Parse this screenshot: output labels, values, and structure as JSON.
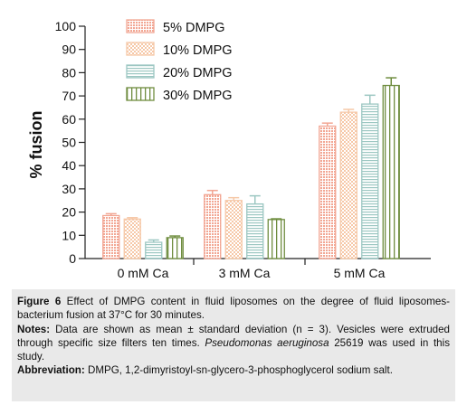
{
  "chart_data": {
    "type": "bar",
    "ylabel": "% fusion",
    "xlabel": "",
    "ylim": [
      0,
      100
    ],
    "yticks": [
      "0",
      "10",
      "20",
      "30",
      "40",
      "50",
      "60",
      "70",
      "80",
      "90",
      "100"
    ],
    "categories": [
      "0 mM Ca",
      "3 mM Ca",
      "5 mM Ca"
    ],
    "legend_position": "top-right",
    "error_bars": "mean ± SD",
    "series": [
      {
        "name": "5% DMPG",
        "values": [
          18.5,
          27.5,
          57.0
        ],
        "errors": [
          0.8,
          1.8,
          1.3
        ],
        "color": "#f2a693",
        "pattern": "dense-dots"
      },
      {
        "name": "10% DMPG",
        "values": [
          17.0,
          25.0,
          63.0
        ],
        "errors": [
          0.6,
          1.2,
          1.2
        ],
        "color": "#f6c8a8",
        "pattern": "checker"
      },
      {
        "name": "20% DMPG",
        "values": [
          7.0,
          23.5,
          66.5
        ],
        "errors": [
          1.0,
          3.5,
          3.8
        ],
        "color": "#9cc7c2",
        "pattern": "horizontal-lines"
      },
      {
        "name": "30% DMPG",
        "values": [
          9.0,
          16.8,
          74.5
        ],
        "errors": [
          0.7,
          0.3,
          3.3
        ],
        "color": "#6f8d3f",
        "pattern": "vertical-lines"
      }
    ]
  },
  "caption": {
    "figure_label": "Figure 6",
    "figure_text": " Effect of DMPG content in fluid liposomes on the degree of fluid liposomes-bacterium fusion at 37°C for 30 minutes.",
    "notes_label": "Notes:",
    "notes_text_1": " Data are shown as mean ± standard deviation (n = 3). Vesicles were extruded through specific size filters ten times. ",
    "notes_italic": "Pseudomonas aeruginosa",
    "notes_text_2": " 25619 was used in this study.",
    "abbrev_label": "Abbreviation:",
    "abbrev_text": " DMPG, 1,2-dimyristoyl-sn-glycero-3-phosphoglycerol sodium salt."
  }
}
